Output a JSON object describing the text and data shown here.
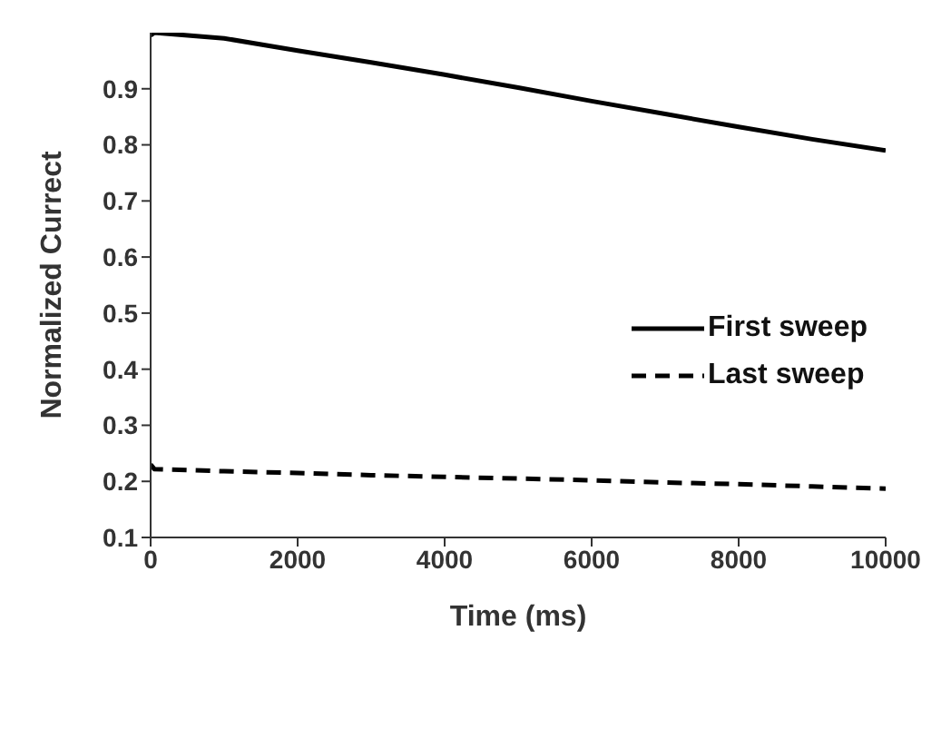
{
  "chart_data": {
    "type": "line",
    "xlabel": "Time (ms)",
    "ylabel": "Normalized Currect",
    "xlim": [
      0,
      10000
    ],
    "xticks": [
      0,
      2000,
      4000,
      6000,
      8000,
      10000
    ],
    "ylim": [
      0.1,
      1.0
    ],
    "yticks": [
      0.1,
      0.2,
      0.3,
      0.4,
      0.5,
      0.6,
      0.7,
      0.8,
      0.9
    ],
    "grid": false,
    "legend": "right",
    "marker": "none",
    "series": [
      {
        "name": "First sweep",
        "color": "#000000",
        "line_style": "solid",
        "x": [
          0,
          50,
          1000,
          2000,
          3000,
          4000,
          5000,
          6000,
          7000,
          8000,
          9000,
          10000
        ],
        "values": [
          0.995,
          1.0,
          0.99,
          0.968,
          0.947,
          0.925,
          0.902,
          0.878,
          0.855,
          0.832,
          0.81,
          0.79
        ]
      },
      {
        "name": "Last sweep",
        "color": "#000000",
        "line_style": "dashed",
        "x": [
          0,
          50,
          1000,
          2000,
          3000,
          4000,
          5000,
          6000,
          7000,
          8000,
          9000,
          10000
        ],
        "values": [
          0.23,
          0.222,
          0.218,
          0.215,
          0.211,
          0.208,
          0.205,
          0.202,
          0.198,
          0.195,
          0.191,
          0.187
        ]
      }
    ]
  }
}
